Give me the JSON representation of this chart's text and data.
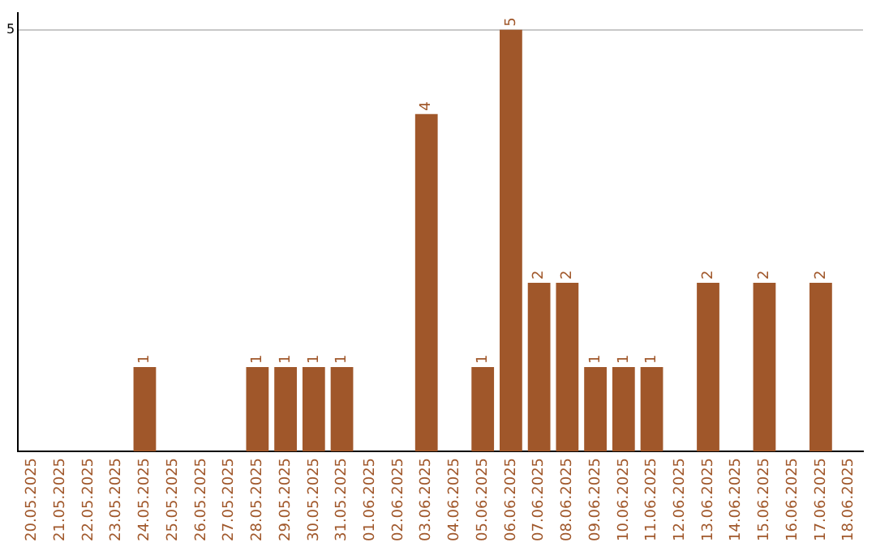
{
  "chart_data": {
    "type": "bar",
    "categories": [
      "20.05.2025",
      "21.05.2025",
      "22.05.2025",
      "23.05.2025",
      "24.05.2025",
      "25.05.2025",
      "26.05.2025",
      "27.05.2025",
      "28.05.2025",
      "29.05.2025",
      "30.05.2025",
      "31.05.2025",
      "01.06.2025",
      "02.06.2025",
      "03.06.2025",
      "04.06.2025",
      "05.06.2025",
      "06.06.2025",
      "07.06.2025",
      "08.06.2025",
      "09.06.2025",
      "10.06.2025",
      "11.06.2025",
      "12.06.2025",
      "13.06.2025",
      "14.06.2025",
      "15.06.2025",
      "16.06.2025",
      "17.06.2025",
      "18.06.2025"
    ],
    "values": [
      0,
      0,
      0,
      0,
      1,
      0,
      0,
      0,
      1,
      1,
      1,
      1,
      0,
      0,
      4,
      0,
      1,
      5,
      2,
      2,
      1,
      1,
      1,
      0,
      2,
      0,
      2,
      0,
      2,
      0
    ],
    "value_labels": [
      null,
      null,
      null,
      null,
      "1",
      null,
      null,
      null,
      "1",
      "1",
      "1",
      "1",
      null,
      null,
      "4",
      null,
      "1",
      "5",
      "2",
      "2",
      "1",
      "1",
      "1",
      null,
      "2",
      null,
      "2",
      null,
      "2",
      null
    ],
    "color": "#a0572a",
    "ylim": [
      0,
      5.2
    ],
    "yticks": [
      5
    ],
    "grid": "y",
    "legend": false
  }
}
